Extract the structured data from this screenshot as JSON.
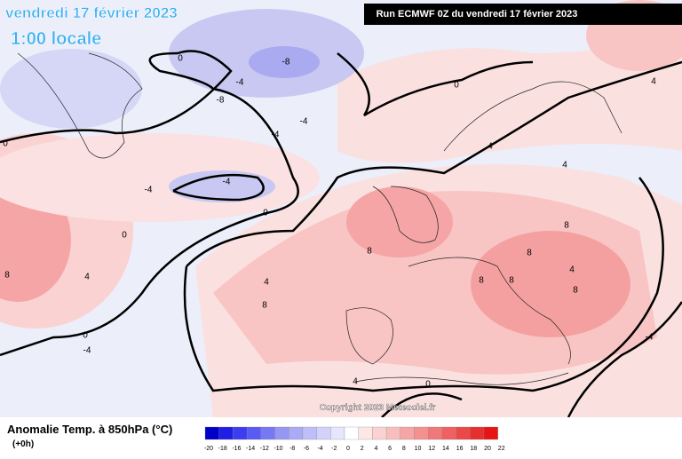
{
  "header": {
    "title": "vendredi 17 février 2023",
    "subtitle": "1:00 locale",
    "run": "Run ECMWF 0Z du vendredi 17 février 2023"
  },
  "footer": {
    "label": "Anomalie Temp. à 850hPa (°C)",
    "lead": "(+0h)",
    "copyright": "Copyright 2023 Meteociel.fr"
  },
  "colorbar": {
    "labels": [
      "-20",
      "-18",
      "-16",
      "-14",
      "-12",
      "-10",
      "-8",
      "-6",
      "-4",
      "-2",
      "0",
      "2",
      "4",
      "6",
      "8",
      "10",
      "12",
      "14",
      "16",
      "18",
      "20",
      "22"
    ],
    "colors": [
      "#0000c8",
      "#1e1ee6",
      "#3c3cf0",
      "#5a5af5",
      "#7878f5",
      "#9696f5",
      "#aaaaf5",
      "#bebef8",
      "#d2d2fa",
      "#e6e6fc",
      "#ffffff",
      "#fce6e6",
      "#fad2d2",
      "#f8bebe",
      "#f5a5a5",
      "#f59090",
      "#f07878",
      "#f06060",
      "#eb4848",
      "#e63030",
      "#e61414"
    ]
  },
  "map": {
    "contour_labels": [
      "0",
      "-8",
      "-8",
      "-4",
      "-4",
      "0",
      "-4",
      "-4",
      "0",
      "0",
      "4",
      "4",
      "4",
      "8",
      "8",
      "8",
      "8",
      "8",
      "4",
      "8",
      "4",
      "0",
      "-4",
      "8",
      "8",
      "4",
      "0",
      "-4",
      "4",
      "0",
      "-4"
    ]
  }
}
